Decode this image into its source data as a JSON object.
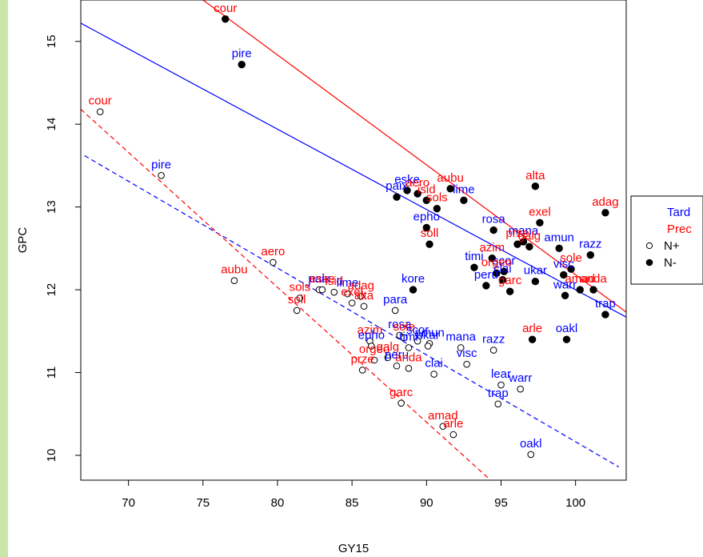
{
  "chart_data": {
    "type": "scatter",
    "xlabel": "GY15",
    "ylabel": "GPC",
    "xlim": [
      66.8,
      103.4
    ],
    "ylim": [
      9.7,
      15.5
    ],
    "xticks": [
      70,
      75,
      80,
      85,
      90,
      95,
      100
    ],
    "yticks": [
      10,
      11,
      12,
      13,
      14,
      15
    ],
    "grid": false,
    "legend": {
      "placement": "right",
      "entries": [
        {
          "label": "Tard",
          "color": "#0000ff",
          "symbol": "none"
        },
        {
          "label": "Prec",
          "color": "#ff0000",
          "symbol": "none"
        },
        {
          "label": "N+",
          "color": "#000000",
          "symbol": "open-circle"
        },
        {
          "label": "N-",
          "color": "#000000",
          "symbol": "filled-circle"
        }
      ]
    },
    "colors": {
      "Tard": "#0000ff",
      "Prec": "#ff0000"
    },
    "series": [
      {
        "name": "N-",
        "marker": "filled-circle",
        "points": [
          {
            "label": "cour",
            "x": 76.5,
            "y": 15.27,
            "color": "#ff0000"
          },
          {
            "label": "pire",
            "x": 77.6,
            "y": 14.72,
            "color": "#0000ff"
          },
          {
            "label": "alta",
            "x": 97.3,
            "y": 13.25,
            "color": "#ff0000"
          },
          {
            "label": "adag",
            "x": 102.0,
            "y": 12.93,
            "color": "#ff0000"
          },
          {
            "label": "aubu",
            "x": 91.6,
            "y": 13.22,
            "color": "#ff0000"
          },
          {
            "label": "eske",
            "x": 88.7,
            "y": 13.2,
            "color": "#0000ff"
          },
          {
            "label": "paix",
            "x": 88.0,
            "y": 13.12,
            "color": "#0000ff"
          },
          {
            "label": "aero",
            "x": 89.4,
            "y": 13.16,
            "color": "#ff0000"
          },
          {
            "label": "isid",
            "x": 90.0,
            "y": 13.08,
            "color": "#ff0000"
          },
          {
            "label": "lime",
            "x": 92.5,
            "y": 13.08,
            "color": "#0000ff"
          },
          {
            "label": "sols",
            "x": 90.7,
            "y": 12.98,
            "color": "#ff0000"
          },
          {
            "label": "epho",
            "x": 90.0,
            "y": 12.75,
            "color": "#0000ff"
          },
          {
            "label": "soll",
            "x": 90.2,
            "y": 12.55,
            "color": "#ff0000"
          },
          {
            "label": "exel",
            "x": 97.6,
            "y": 12.81,
            "color": "#ff0000"
          },
          {
            "label": "rosa",
            "x": 94.5,
            "y": 12.72,
            "color": "#0000ff"
          },
          {
            "label": "mana",
            "x": 96.5,
            "y": 12.58,
            "color": "#0000ff"
          },
          {
            "label": "prze",
            "x": 96.1,
            "y": 12.55,
            "color": "#ff0000"
          },
          {
            "label": "galg",
            "x": 96.9,
            "y": 12.52,
            "color": "#ff0000"
          },
          {
            "label": "amun",
            "x": 98.9,
            "y": 12.5,
            "color": "#0000ff"
          },
          {
            "label": "razz",
            "x": 101.0,
            "y": 12.42,
            "color": "#0000ff"
          },
          {
            "label": "azim",
            "x": 94.4,
            "y": 12.38,
            "color": "#ff0000"
          },
          {
            "label": "sole",
            "x": 99.7,
            "y": 12.25,
            "color": "#ff0000"
          },
          {
            "label": "timi",
            "x": 93.2,
            "y": 12.27,
            "color": "#0000ff"
          },
          {
            "label": "scor",
            "x": 95.2,
            "y": 12.22,
            "color": "#0000ff"
          },
          {
            "label": "orgeo",
            "x": 94.7,
            "y": 12.2,
            "color": "#ff0000"
          },
          {
            "label": "visc",
            "x": 99.2,
            "y": 12.18,
            "color": "#0000ff"
          },
          {
            "label": "peru",
            "x": 94.0,
            "y": 12.05,
            "color": "#0000ff"
          },
          {
            "label": "clai",
            "x": 95.1,
            "y": 12.12,
            "color": "#0000ff"
          },
          {
            "label": "ukar",
            "x": 97.3,
            "y": 12.1,
            "color": "#0000ff"
          },
          {
            "label": "garc",
            "x": 95.6,
            "y": 11.98,
            "color": "#ff0000"
          },
          {
            "label": "warr",
            "x": 99.3,
            "y": 11.93,
            "color": "#0000ff"
          },
          {
            "label": "amad",
            "x": 100.3,
            "y": 12.0,
            "color": "#ff0000"
          },
          {
            "label": "anda",
            "x": 101.2,
            "y": 12.0,
            "color": "#ff0000"
          },
          {
            "label": "trap",
            "x": 102.0,
            "y": 11.7,
            "color": "#0000ff"
          },
          {
            "label": "kore",
            "x": 89.1,
            "y": 12.0,
            "color": "#0000ff"
          },
          {
            "label": "arle",
            "x": 97.1,
            "y": 11.4,
            "color": "#ff0000"
          },
          {
            "label": "oakl",
            "x": 99.4,
            "y": 11.4,
            "color": "#0000ff"
          }
        ]
      },
      {
        "name": "N+",
        "marker": "open-circle",
        "points": [
          {
            "label": "cour",
            "x": 68.1,
            "y": 14.15,
            "color": "#ff0000"
          },
          {
            "label": "pire",
            "x": 72.2,
            "y": 13.38,
            "color": "#0000ff"
          },
          {
            "label": "aero",
            "x": 79.7,
            "y": 12.33,
            "color": "#ff0000"
          },
          {
            "label": "aubu",
            "x": 77.1,
            "y": 12.11,
            "color": "#ff0000"
          },
          {
            "label": "paix",
            "x": 82.8,
            "y": 12.0,
            "color": "#0000ff"
          },
          {
            "label": "eske",
            "x": 83.0,
            "y": 12.0,
            "color": "#ff0000"
          },
          {
            "label": "isid",
            "x": 83.8,
            "y": 11.97,
            "color": "#ff0000"
          },
          {
            "label": "lime",
            "x": 84.7,
            "y": 11.95,
            "color": "#0000ff"
          },
          {
            "label": "sols",
            "x": 81.5,
            "y": 11.9,
            "color": "#ff0000"
          },
          {
            "label": "soll",
            "x": 81.3,
            "y": 11.75,
            "color": "#ff0000"
          },
          {
            "label": "adag",
            "x": 85.6,
            "y": 11.92,
            "color": "#ff0000"
          },
          {
            "label": "exel",
            "x": 85.0,
            "y": 11.84,
            "color": "#ff0000"
          },
          {
            "label": "alta",
            "x": 85.8,
            "y": 11.8,
            "color": "#ff0000"
          },
          {
            "label": "para",
            "x": 87.9,
            "y": 11.75,
            "color": "#0000ff"
          },
          {
            "label": "azim",
            "x": 86.2,
            "y": 11.38,
            "color": "#ff0000"
          },
          {
            "label": "epho",
            "x": 86.3,
            "y": 11.32,
            "color": "#0000ff"
          },
          {
            "label": "rosa",
            "x": 88.2,
            "y": 11.45,
            "color": "#0000ff"
          },
          {
            "label": "sole",
            "x": 88.5,
            "y": 11.42,
            "color": "#ff0000"
          },
          {
            "label": "scor",
            "x": 89.4,
            "y": 11.38,
            "color": "#0000ff"
          },
          {
            "label": "amun",
            "x": 90.2,
            "y": 11.35,
            "color": "#0000ff"
          },
          {
            "label": "timi",
            "x": 88.8,
            "y": 11.3,
            "color": "#0000ff"
          },
          {
            "label": "mana",
            "x": 92.3,
            "y": 11.3,
            "color": "#0000ff"
          },
          {
            "label": "razz",
            "x": 94.5,
            "y": 11.27,
            "color": "#0000ff"
          },
          {
            "label": "ukar",
            "x": 90.1,
            "y": 11.32,
            "color": "#0000ff"
          },
          {
            "label": "prze",
            "x": 85.7,
            "y": 11.03,
            "color": "#ff0000"
          },
          {
            "label": "orgeo",
            "x": 86.5,
            "y": 11.15,
            "color": "#ff0000"
          },
          {
            "label": "galg",
            "x": 87.4,
            "y": 11.18,
            "color": "#ff0000"
          },
          {
            "label": "visc",
            "x": 92.7,
            "y": 11.1,
            "color": "#0000ff"
          },
          {
            "label": "peru",
            "x": 88.0,
            "y": 11.08,
            "color": "#0000ff"
          },
          {
            "label": "clai",
            "x": 90.5,
            "y": 10.98,
            "color": "#0000ff"
          },
          {
            "label": "anda",
            "x": 88.8,
            "y": 11.05,
            "color": "#ff0000"
          },
          {
            "label": "garc",
            "x": 88.3,
            "y": 10.63,
            "color": "#ff0000"
          },
          {
            "label": "lear",
            "x": 95.0,
            "y": 10.85,
            "color": "#0000ff"
          },
          {
            "label": "warr",
            "x": 96.3,
            "y": 10.8,
            "color": "#0000ff"
          },
          {
            "label": "trap",
            "x": 94.8,
            "y": 10.62,
            "color": "#0000ff"
          },
          {
            "label": "amad",
            "x": 91.1,
            "y": 10.35,
            "color": "#ff0000"
          },
          {
            "label": "arle",
            "x": 91.8,
            "y": 10.25,
            "color": "#ff0000"
          },
          {
            "label": "oakl",
            "x": 97.0,
            "y": 10.01,
            "color": "#0000ff"
          }
        ]
      }
    ],
    "fit_lines": [
      {
        "group": "Tard N-",
        "style": "solid",
        "color": "#0000ff",
        "x": [
          66.8,
          103.4
        ],
        "y": [
          15.22,
          11.67
        ]
      },
      {
        "group": "Prec N-",
        "style": "solid",
        "color": "#ff0000",
        "x": [
          75.0,
          103.4
        ],
        "y": [
          15.5,
          11.73
        ]
      },
      {
        "group": "Tard N+",
        "style": "dashed",
        "color": "#0000ff",
        "x": [
          67.05,
          102.9
        ],
        "y": [
          13.62,
          9.86
        ]
      },
      {
        "group": "Prec N+",
        "style": "dashed",
        "color": "#ff0000",
        "x": [
          66.8,
          94.3
        ],
        "y": [
          14.18,
          9.7
        ]
      }
    ]
  }
}
